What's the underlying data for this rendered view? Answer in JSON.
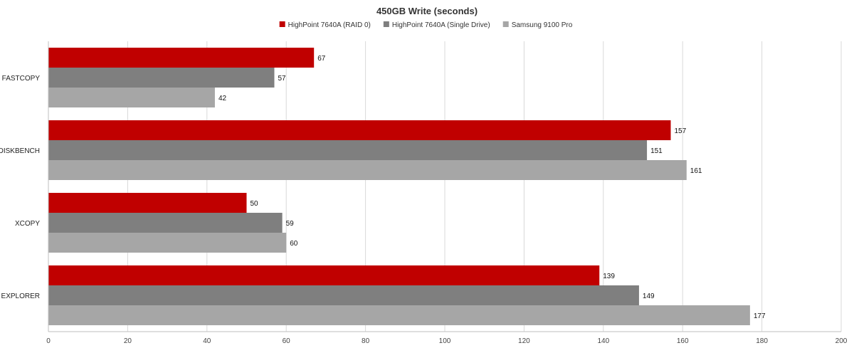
{
  "chart_data": {
    "type": "bar",
    "orientation": "horizontal",
    "title": "450GB Write (seconds)",
    "xlabel": "",
    "ylabel": "",
    "categories": [
      "FASTCOPY",
      "DISKBENCH",
      "XCOPY",
      "EXPLORER"
    ],
    "series": [
      {
        "name": "HighPoint 7640A (RAID 0)",
        "color": "#c00000",
        "values": [
          67,
          157,
          50,
          139
        ]
      },
      {
        "name": "HighPoint 7640A (Single Drive)",
        "color": "#7f7f7f",
        "values": [
          57,
          151,
          59,
          149
        ]
      },
      {
        "name": "Samsung 9100 Pro",
        "color": "#a6a6a6",
        "values": [
          42,
          161,
          60,
          177
        ]
      }
    ],
    "xlim": [
      0,
      200
    ],
    "xticks": [
      "0",
      "20",
      "40",
      "60",
      "80",
      "100",
      "120",
      "140",
      "160",
      "180",
      "200"
    ],
    "grid": true,
    "legend_position": "top-center"
  }
}
